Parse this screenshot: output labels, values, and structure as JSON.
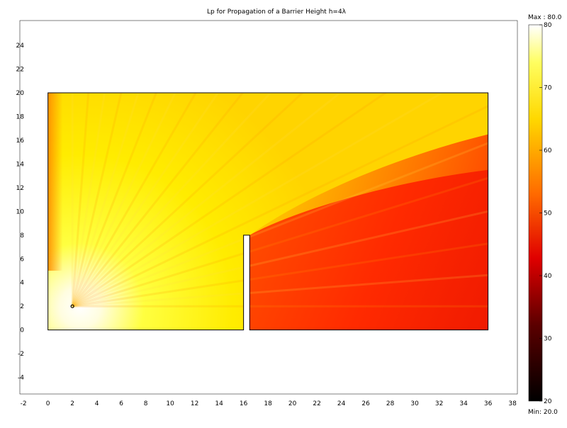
{
  "chart_data": {
    "type": "heatmap",
    "title": "Lp for Propagation of a Barrier Height h=4λ",
    "xlabel": "",
    "ylabel": "",
    "xlim": [
      -2.3,
      38.4
    ],
    "ylim": [
      -5.4,
      26.1
    ],
    "x_ticks": [
      -2,
      0,
      2,
      4,
      6,
      8,
      10,
      12,
      14,
      16,
      18,
      20,
      22,
      24,
      26,
      28,
      30,
      32,
      34,
      36,
      38
    ],
    "y_ticks": [
      -4,
      -2,
      0,
      2,
      4,
      6,
      8,
      10,
      12,
      14,
      16,
      18,
      20,
      22,
      24
    ],
    "grid": false,
    "domain": {
      "left_region": {
        "x": [
          0,
          16
        ],
        "y": [
          0,
          20
        ]
      },
      "barrier": {
        "x": [
          16,
          16.5
        ],
        "y": [
          0,
          8
        ]
      },
      "right_region": {
        "x": [
          16.5,
          36
        ],
        "y": [
          0,
          20
        ]
      }
    },
    "source_point": {
      "x": 2,
      "y": 2
    },
    "colorbar": {
      "colormap": "hot",
      "min": 20,
      "max": 80,
      "ticks": [
        20,
        30,
        40,
        50,
        60,
        70,
        80
      ],
      "max_label": "Max : 80.0",
      "min_label": "Min: 20.0"
    },
    "field_levels": {
      "near_source": 80,
      "left_open_region": 64,
      "upper_right_region": 58,
      "shadow_region_top": 45,
      "shadow_region_bottom": 40
    }
  }
}
